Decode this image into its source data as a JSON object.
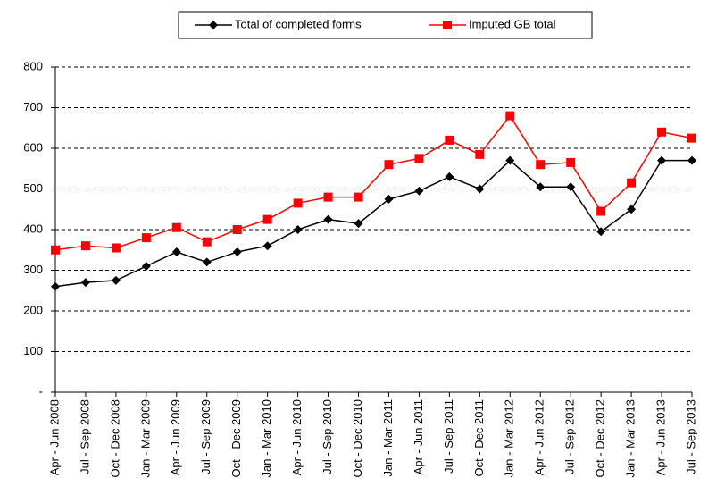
{
  "chart_data": {
    "type": "line",
    "categories": [
      "Apr - Jun 2008",
      "Jul - Sep 2008",
      "Oct - Dec 2008",
      "Jan - Mar 2009",
      "Apr - Jun 2009",
      "Jul - Sep 2009",
      "Oct - Dec 2009",
      "Jan - Mar 2010",
      "Apr - Jun 2010",
      "Jul - Sep 2010",
      "Oct - Dec 2010",
      "Jan - Mar 2011",
      "Apr - Jun 2011",
      "Jul - Sep 2011",
      "Oct - Dec 2011",
      "Jan - Mar 2012",
      "Apr - Jun 2012",
      "Jul - Sep 2012",
      "Oct - Dec 2012",
      "Jan - Mar 2013",
      "Apr - Jun 2013",
      "Jul - Sep 2013"
    ],
    "series": [
      {
        "name": "Total of completed forms",
        "color": "#000000",
        "marker": "diamond",
        "values": [
          260,
          270,
          275,
          310,
          345,
          320,
          345,
          360,
          400,
          425,
          415,
          475,
          495,
          530,
          500,
          570,
          505,
          505,
          395,
          450,
          570,
          570
        ]
      },
      {
        "name": "Imputed GB total",
        "color": "#ff0000",
        "marker": "square",
        "values": [
          350,
          360,
          355,
          380,
          405,
          370,
          400,
          425,
          465,
          480,
          480,
          560,
          575,
          620,
          585,
          680,
          560,
          565,
          445,
          515,
          640,
          625
        ]
      }
    ],
    "ylim": [
      0,
      800
    ],
    "yticks": [
      {
        "value": 0,
        "label": "-"
      },
      100,
      200,
      300,
      400,
      500,
      600,
      700,
      800
    ],
    "grid": true,
    "legend": "top"
  }
}
